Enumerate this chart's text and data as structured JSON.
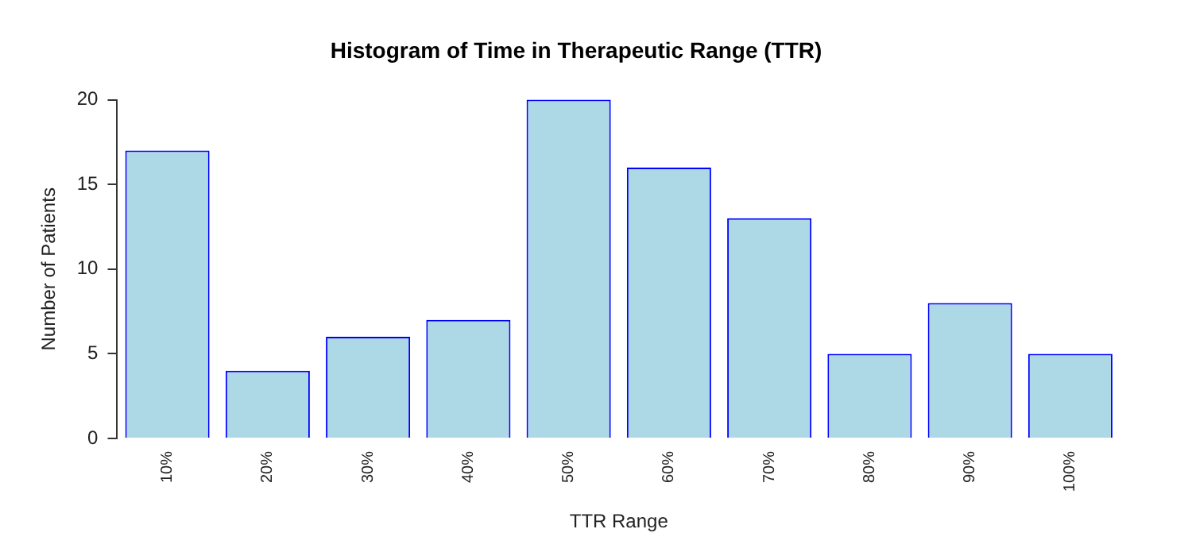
{
  "chart_data": {
    "type": "bar",
    "title": "Histogram of Time in Therapeutic Range (TTR)",
    "xlabel": "TTR Range",
    "ylabel": "Number of Patients",
    "categories": [
      "10%",
      "20%",
      "30%",
      "40%",
      "50%",
      "60%",
      "70%",
      "80%",
      "90%",
      "100%"
    ],
    "values": [
      17,
      4,
      6,
      7,
      20,
      16,
      13,
      5,
      8,
      5
    ],
    "color": "#add8e6",
    "ylim": [
      0,
      20
    ],
    "yticks": [
      0,
      5,
      10,
      15,
      20
    ],
    "grid": false,
    "legend": false
  }
}
